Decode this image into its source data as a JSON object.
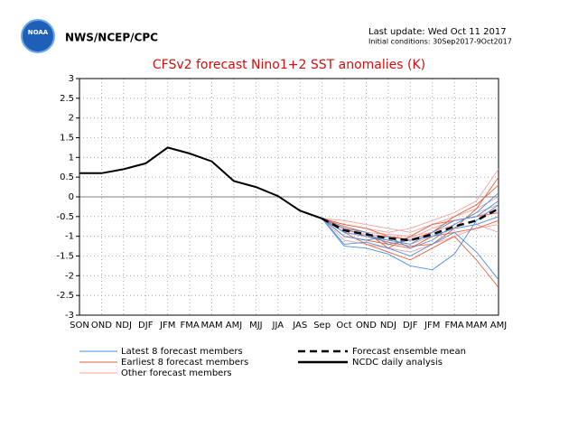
{
  "chart_data": {
    "type": "line",
    "logo_text": "NOAA",
    "agency": "NWS/NCEP/CPC",
    "last_update": "Last update: Wed Oct 11 2017",
    "initial_conditions": "Initial conditions: 30Sep2017-9Oct2017",
    "title": "CFSv2 forecast Nino1+2 SST anomalies (K)",
    "categories": [
      "SON",
      "OND",
      "NDJ",
      "DJF",
      "JFM",
      "FMA",
      "MAM",
      "AMJ",
      "MJJ",
      "JJA",
      "JAS",
      "Sep",
      "Oct",
      "OND",
      "NDJ",
      "DJF",
      "JFM",
      "FMA",
      "MAM",
      "AMJ"
    ],
    "ylim": [
      -3,
      3
    ],
    "yticks": [
      -3,
      -2.5,
      -2,
      -1.5,
      -1,
      -0.5,
      0,
      0.5,
      1,
      1.5,
      2,
      2.5,
      3
    ],
    "grid": true,
    "member_groups": [
      {
        "name": "Latest 8 forecast members",
        "color": "#4a8fe0",
        "members": [
          [
            null,
            null,
            null,
            null,
            null,
            null,
            null,
            null,
            null,
            null,
            null,
            -0.55,
            -1.25,
            -1.3,
            -1.45,
            -1.75,
            -1.85,
            -1.45,
            -0.6,
            -0.2
          ],
          [
            null,
            null,
            null,
            null,
            null,
            null,
            null,
            null,
            null,
            null,
            null,
            -0.55,
            -1.2,
            -1.15,
            -1.3,
            -1.5,
            -1.2,
            -0.9,
            -1.4,
            -2.1
          ],
          [
            null,
            null,
            null,
            null,
            null,
            null,
            null,
            null,
            null,
            null,
            null,
            -0.55,
            -0.9,
            -1.0,
            -1.1,
            -1.2,
            -0.9,
            -0.6,
            -0.5,
            -0.1
          ],
          [
            null,
            null,
            null,
            null,
            null,
            null,
            null,
            null,
            null,
            null,
            null,
            -0.55,
            -0.8,
            -0.9,
            -1.2,
            -1.1,
            -1.0,
            -0.8,
            -0.7,
            -0.5
          ],
          [
            null,
            null,
            null,
            null,
            null,
            null,
            null,
            null,
            null,
            null,
            null,
            -0.55,
            -1.0,
            -1.1,
            -1.0,
            -1.3,
            -1.1,
            -0.7,
            -0.4,
            0.1
          ]
        ]
      },
      {
        "name": "Earliest 8 forecast members",
        "color": "#e8603c",
        "members": [
          [
            null,
            null,
            null,
            null,
            null,
            null,
            null,
            null,
            null,
            null,
            null,
            -0.55,
            -0.9,
            -1.2,
            -1.4,
            -1.6,
            -1.3,
            -1.0,
            -1.6,
            -2.3
          ],
          [
            null,
            null,
            null,
            null,
            null,
            null,
            null,
            null,
            null,
            null,
            null,
            -0.55,
            -0.7,
            -0.8,
            -1.0,
            -1.1,
            -0.9,
            -0.5,
            -0.2,
            0.3
          ],
          [
            null,
            null,
            null,
            null,
            null,
            null,
            null,
            null,
            null,
            null,
            null,
            -0.55,
            -1.0,
            -1.1,
            -1.2,
            -1.3,
            -1.0,
            -0.9,
            -0.8,
            -0.6
          ],
          [
            null,
            null,
            null,
            null,
            null,
            null,
            null,
            null,
            null,
            null,
            null,
            -0.55,
            -0.8,
            -1.0,
            -1.15,
            -1.25,
            -1.2,
            -0.8,
            -0.3,
            0.5
          ],
          [
            null,
            null,
            null,
            null,
            null,
            null,
            null,
            null,
            null,
            null,
            null,
            -0.55,
            -0.75,
            -0.9,
            -1.3,
            -1.0,
            -0.7,
            -0.6,
            -0.5,
            -0.4
          ]
        ]
      },
      {
        "name": "Other forecast members",
        "color": "#f4a3a3",
        "members": [
          [
            null,
            null,
            null,
            null,
            null,
            null,
            null,
            null,
            null,
            null,
            null,
            -0.55,
            -0.7,
            -0.8,
            -0.9,
            -0.8,
            -0.6,
            -0.4,
            -0.1,
            0.7
          ],
          [
            null,
            null,
            null,
            null,
            null,
            null,
            null,
            null,
            null,
            null,
            null,
            -0.55,
            -0.9,
            -1.0,
            -1.1,
            -1.2,
            -1.0,
            -0.8,
            -0.7,
            -0.9
          ],
          [
            null,
            null,
            null,
            null,
            null,
            null,
            null,
            null,
            null,
            null,
            null,
            -0.55,
            -0.8,
            -0.9,
            -0.95,
            -1.0,
            -0.9,
            -0.7,
            -0.4,
            -0.2
          ],
          [
            null,
            null,
            null,
            null,
            null,
            null,
            null,
            null,
            null,
            null,
            null,
            -0.55,
            -0.6,
            -0.7,
            -0.8,
            -0.9,
            -0.7,
            -0.5,
            -0.3,
            0.0
          ],
          [
            null,
            null,
            null,
            null,
            null,
            null,
            null,
            null,
            null,
            null,
            null,
            -0.55,
            -1.1,
            -1.2,
            -1.3,
            -1.4,
            -1.2,
            -1.0,
            -0.8,
            -0.7
          ],
          [
            null,
            null,
            null,
            null,
            null,
            null,
            null,
            null,
            null,
            null,
            null,
            -0.55,
            -0.85,
            -0.95,
            -1.0,
            -1.05,
            -0.8,
            -0.6,
            -0.5,
            -0.3
          ]
        ]
      }
    ],
    "series": [
      {
        "name": "Forecast ensemble mean",
        "color": "#000000",
        "dashed": true,
        "values": [
          null,
          null,
          null,
          null,
          null,
          null,
          null,
          null,
          null,
          null,
          null,
          -0.55,
          -0.85,
          -0.95,
          -1.05,
          -1.1,
          -0.95,
          -0.75,
          -0.6,
          -0.3
        ]
      },
      {
        "name": "NCDC daily analysis",
        "color": "#000000",
        "dashed": false,
        "values": [
          0.6,
          0.6,
          0.7,
          0.85,
          1.25,
          1.1,
          0.9,
          0.4,
          0.25,
          0.02,
          -0.35,
          -0.55,
          null,
          null,
          null,
          null,
          null,
          null,
          null,
          null
        ]
      }
    ]
  }
}
